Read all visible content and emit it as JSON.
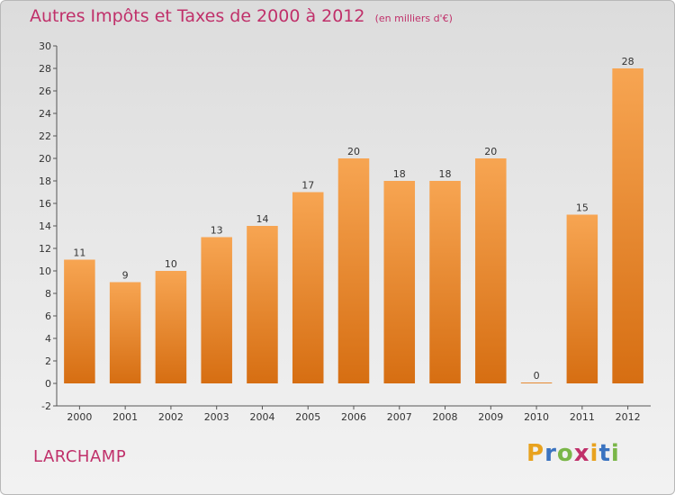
{
  "chart_data": {
    "type": "bar",
    "title": "Autres Impôts et Taxes de 2000 à 2012",
    "subtitle": "(en milliers d'€)",
    "categories": [
      "2000",
      "2001",
      "2002",
      "2003",
      "2004",
      "2005",
      "2006",
      "2007",
      "2008",
      "2009",
      "2010",
      "2011",
      "2012"
    ],
    "values": [
      11,
      9,
      10,
      13,
      14,
      17,
      20,
      18,
      18,
      20,
      0,
      15,
      28
    ],
    "ylim": [
      -2,
      30
    ],
    "yticks": [
      -2,
      0,
      2,
      4,
      6,
      8,
      10,
      12,
      14,
      16,
      18,
      20,
      22,
      24,
      26,
      28,
      30
    ],
    "grid": false,
    "bar_color": "#f08a2a"
  },
  "footer": {
    "city": "LARCHAMP",
    "logo": [
      "P",
      "r",
      "o",
      "x",
      "i",
      "t",
      "i"
    ],
    "logo_colors": [
      "#e8a21e",
      "#3a73c0",
      "#7ab648",
      "#c0306a",
      "#e8a21e",
      "#3a73c0",
      "#7ab648"
    ]
  }
}
